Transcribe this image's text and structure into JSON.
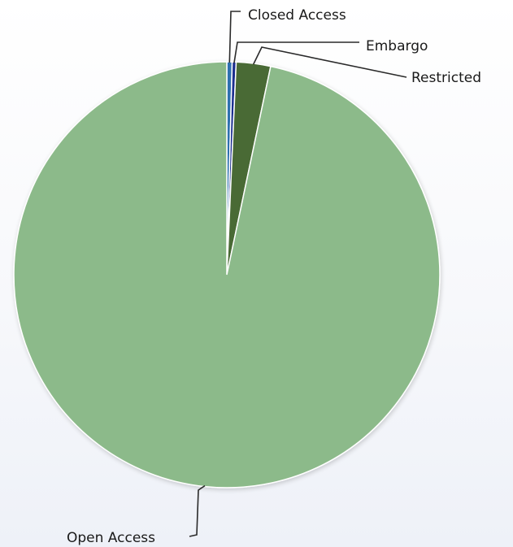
{
  "chart_data": {
    "type": "pie",
    "title": "",
    "slices": [
      {
        "label": "Closed Access",
        "value": 0.4,
        "color": "#2f6fb0"
      },
      {
        "label": "Embargo",
        "value": 0.3,
        "color": "#1b2f8f"
      },
      {
        "label": "Restricted",
        "value": 2.6,
        "color": "#4a6b35"
      },
      {
        "label": "Open Access",
        "value": 96.7,
        "color": "#8cba8a"
      }
    ],
    "legend": "none",
    "labels": "outside with leader lines",
    "slice_border_color": "#ffffff"
  }
}
